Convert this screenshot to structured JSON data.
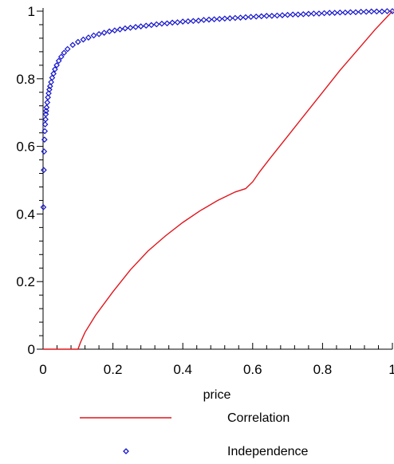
{
  "chart_data": {
    "type": "line",
    "title": "",
    "xlabel": "price",
    "ylabel": "",
    "xlim": [
      0,
      1
    ],
    "ylim": [
      0,
      1
    ],
    "grid": false,
    "legend_position": "bottom",
    "x_ticks": [
      "0",
      "0.2",
      "0.4",
      "0.6",
      "0.8",
      "1"
    ],
    "y_ticks": [
      "0",
      "0.2",
      "0.4",
      "0.6",
      "0.8",
      "1"
    ],
    "colors": {
      "correlation": "#e0161c",
      "independence": "#1515cc"
    },
    "series": [
      {
        "name": "Correlation",
        "style": "line",
        "x": [
          0.0,
          0.1,
          0.107,
          0.12,
          0.15,
          0.2,
          0.25,
          0.3,
          0.35,
          0.4,
          0.45,
          0.5,
          0.55,
          0.58,
          0.6,
          0.62,
          0.65,
          0.7,
          0.75,
          0.8,
          0.85,
          0.9,
          0.95,
          1.0
        ],
        "y": [
          0.0,
          0.0,
          0.02,
          0.05,
          0.1,
          0.17,
          0.235,
          0.29,
          0.335,
          0.375,
          0.41,
          0.44,
          0.465,
          0.475,
          0.495,
          0.525,
          0.565,
          0.63,
          0.695,
          0.76,
          0.825,
          0.885,
          0.945,
          1.0
        ]
      },
      {
        "name": "Independence",
        "style": "marker",
        "x": [
          0.001,
          0.002,
          0.003,
          0.004,
          0.005,
          0.006,
          0.007,
          0.008,
          0.009,
          0.01,
          0.012,
          0.014,
          0.016,
          0.018,
          0.02,
          0.023,
          0.026,
          0.03,
          0.034,
          0.039,
          0.045,
          0.052,
          0.06,
          0.07,
          0.085,
          0.1,
          0.115,
          0.13,
          0.145,
          0.16,
          0.175,
          0.19,
          0.205,
          0.22,
          0.235,
          0.25,
          0.265,
          0.28,
          0.295,
          0.31,
          0.325,
          0.34,
          0.355,
          0.37,
          0.385,
          0.4,
          0.415,
          0.43,
          0.445,
          0.46,
          0.475,
          0.49,
          0.505,
          0.52,
          0.535,
          0.55,
          0.565,
          0.58,
          0.595,
          0.61,
          0.625,
          0.64,
          0.655,
          0.67,
          0.685,
          0.7,
          0.715,
          0.73,
          0.745,
          0.76,
          0.775,
          0.79,
          0.805,
          0.82,
          0.835,
          0.85,
          0.865,
          0.88,
          0.895,
          0.91,
          0.925,
          0.94,
          0.955,
          0.97,
          0.985,
          1.0
        ],
        "y": [
          0.42,
          0.53,
          0.585,
          0.62,
          0.645,
          0.665,
          0.68,
          0.695,
          0.705,
          0.715,
          0.73,
          0.745,
          0.757,
          0.768,
          0.778,
          0.79,
          0.803,
          0.815,
          0.828,
          0.84,
          0.853,
          0.865,
          0.877,
          0.888,
          0.9,
          0.909,
          0.916,
          0.922,
          0.928,
          0.932,
          0.936,
          0.94,
          0.943,
          0.946,
          0.949,
          0.951,
          0.953,
          0.955,
          0.957,
          0.959,
          0.961,
          0.963,
          0.964,
          0.966,
          0.967,
          0.969,
          0.97,
          0.971,
          0.972,
          0.974,
          0.975,
          0.976,
          0.977,
          0.978,
          0.979,
          0.98,
          0.981,
          0.982,
          0.983,
          0.984,
          0.985,
          0.986,
          0.986,
          0.987,
          0.988,
          0.989,
          0.99,
          0.99,
          0.991,
          0.992,
          0.993,
          0.993,
          0.994,
          0.995,
          0.995,
          0.996,
          0.996,
          0.997,
          0.997,
          0.998,
          0.998,
          0.999,
          0.999,
          0.999,
          1.0,
          1.0
        ]
      }
    ]
  }
}
